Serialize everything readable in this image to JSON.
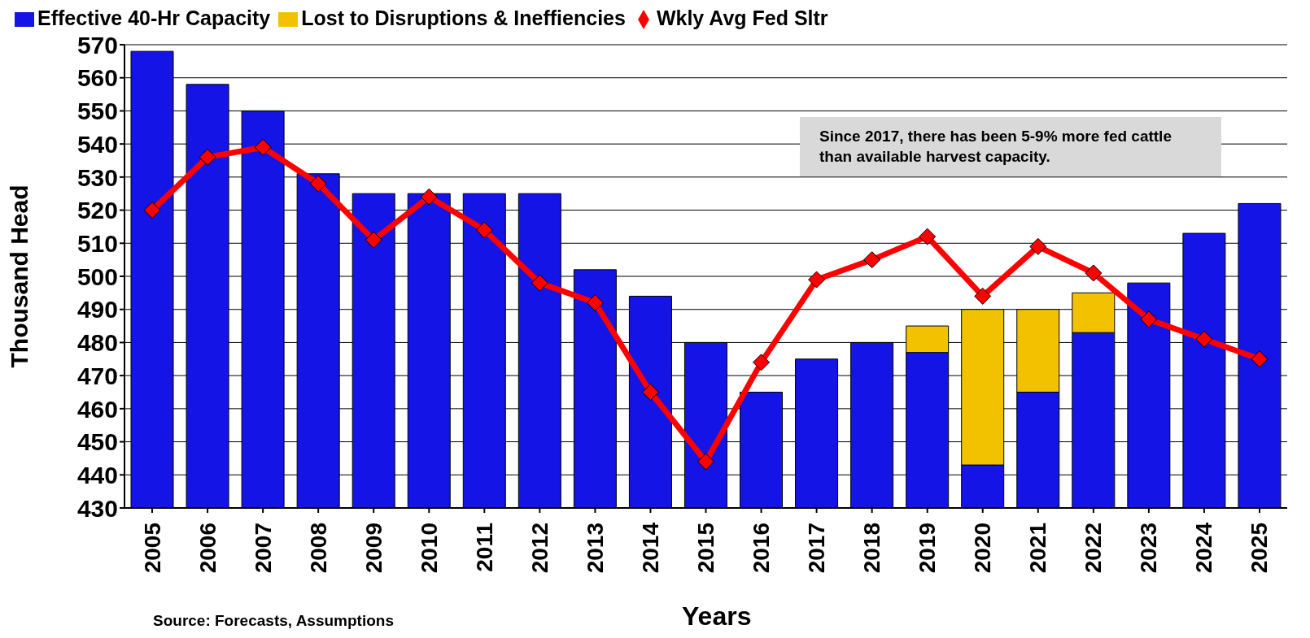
{
  "chart_data": {
    "type": "bar",
    "xlabel": "Years",
    "ylabel": "Thousand Head",
    "categories": [
      "2005",
      "2006",
      "2007",
      "2008",
      "2009",
      "2010",
      "2011",
      "2012",
      "2013",
      "2014",
      "2015",
      "2016",
      "2017",
      "2018",
      "2019",
      "2020",
      "2021",
      "2022",
      "2023",
      "2024",
      "2025"
    ],
    "series": [
      {
        "name": "Effective 40-Hr Capacity",
        "color": "#1414e6",
        "values": [
          568,
          558,
          550,
          531,
          525,
          525,
          525,
          525,
          502,
          494,
          480,
          465,
          475,
          480,
          477,
          443,
          465,
          483,
          498,
          513,
          522
        ]
      },
      {
        "name": "Lost to Disruptions & Ineffiencies",
        "color": "#f2c200",
        "values": [
          null,
          null,
          null,
          null,
          null,
          null,
          null,
          null,
          null,
          null,
          null,
          null,
          null,
          null,
          8,
          47,
          25,
          12,
          null,
          null,
          null
        ],
        "base": [
          null,
          null,
          null,
          null,
          null,
          null,
          null,
          null,
          null,
          null,
          null,
          null,
          null,
          null,
          477,
          443,
          465,
          483,
          null,
          null,
          null
        ]
      },
      {
        "name": "Wkly Avg Fed Sltr",
        "type": "line",
        "color": "#ff0000",
        "marker": "diamond",
        "values": [
          520,
          536,
          539,
          528,
          511,
          524,
          514,
          498,
          492,
          465,
          444,
          474,
          499,
          505,
          512,
          494,
          509,
          501,
          487,
          481,
          475
        ]
      }
    ],
    "ylim": [
      430,
      570
    ],
    "yticks": [
      430,
      440,
      450,
      460,
      470,
      480,
      490,
      500,
      510,
      520,
      530,
      540,
      550,
      560,
      570
    ],
    "grid": "y",
    "legend": "top",
    "annotations": [
      "Since 2017, there has been 5-9% more fed cattle than available harvest capacity.",
      "Source: Forecasts, Assumptions"
    ]
  }
}
